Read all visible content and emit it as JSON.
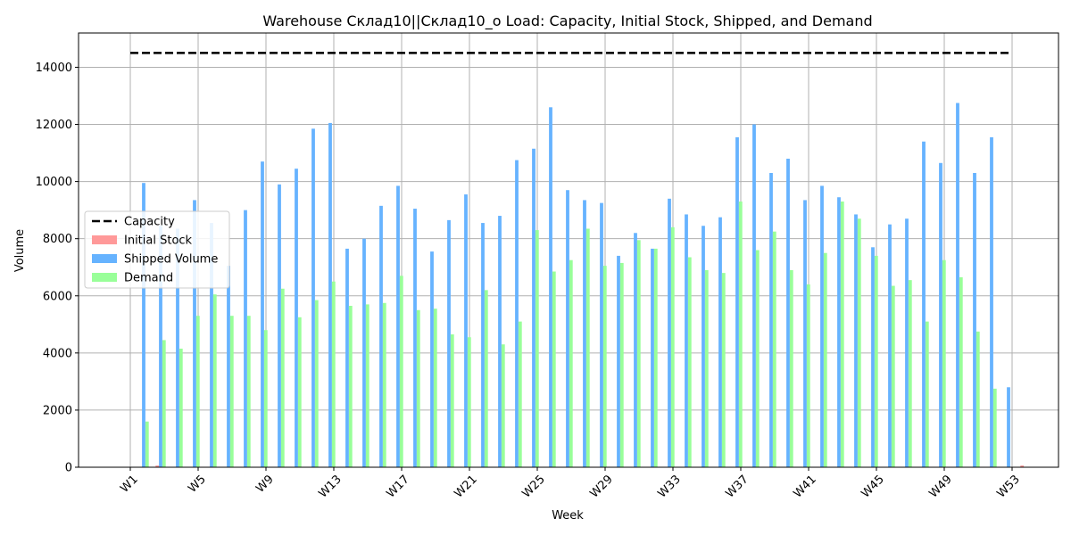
{
  "chart_data": {
    "type": "bar",
    "title": "Warehouse Склад10||Склад10_о Load: Capacity, Initial Stock, Shipped, and Demand",
    "xlabel": "Week",
    "ylabel": "Volume",
    "ylim": [
      0,
      15200
    ],
    "yticks": [
      0,
      2000,
      4000,
      6000,
      8000,
      10000,
      12000,
      14000
    ],
    "ytick_labels": [
      "0",
      "2000",
      "4000",
      "6000",
      "8000",
      "10000",
      "12000",
      "14000"
    ],
    "grid": true,
    "legend_position": "center-left",
    "categories": [
      "W1",
      "W2",
      "W3",
      "W4",
      "W5",
      "W6",
      "W7",
      "W8",
      "W9",
      "W10",
      "W11",
      "W12",
      "W13",
      "W14",
      "W15",
      "W16",
      "W17",
      "W18",
      "W19",
      "W20",
      "W21",
      "W22",
      "W23",
      "W24",
      "W25",
      "W26",
      "W27",
      "W28",
      "W29",
      "W30",
      "W31",
      "W32",
      "W33",
      "W34",
      "W35",
      "W36",
      "W37",
      "W38",
      "W39",
      "W40",
      "W41",
      "W42",
      "W43",
      "W44",
      "W45",
      "W46",
      "W47",
      "W48",
      "W49",
      "W50",
      "W51",
      "W52",
      "W53"
    ],
    "xtick_labels": [
      "W1",
      "W5",
      "W9",
      "W13",
      "W17",
      "W21",
      "W25",
      "W29",
      "W33",
      "W37",
      "W41",
      "W45",
      "W49",
      "W53"
    ],
    "capacity": {
      "name": "Capacity",
      "value": 14500,
      "color": "#000000"
    },
    "series": [
      {
        "name": "Initial Stock",
        "color": "#ff9999",
        "values": [
          0,
          60,
          0,
          0,
          0,
          0,
          0,
          0,
          0,
          0,
          0,
          0,
          0,
          0,
          0,
          0,
          0,
          0,
          0,
          0,
          0,
          0,
          0,
          0,
          0,
          0,
          0,
          0,
          0,
          0,
          0,
          0,
          0,
          0,
          0,
          0,
          0,
          0,
          0,
          0,
          0,
          0,
          0,
          0,
          0,
          0,
          0,
          0,
          0,
          0,
          0,
          0,
          60
        ]
      },
      {
        "name": "Shipped Volume",
        "color": "#66b3ff",
        "values": [
          9950,
          8450,
          8350,
          9350,
          8550,
          7050,
          9000,
          10700,
          9900,
          10450,
          11850,
          12050,
          7650,
          8000,
          9150,
          9850,
          9050,
          7550,
          8650,
          9550,
          8550,
          8800,
          10750,
          11150,
          12600,
          9700,
          9350,
          9250,
          7400,
          8200,
          7650,
          9400,
          8850,
          8450,
          8750,
          11550,
          12000,
          10300,
          10800,
          9350,
          9850,
          9450,
          8850,
          7700,
          8500,
          8700,
          11400,
          10650,
          12750,
          10300,
          11550,
          2800,
          0
        ]
      },
      {
        "name": "Demand",
        "color": "#99ff99",
        "values": [
          1600,
          4450,
          4150,
          5300,
          6050,
          5300,
          5300,
          4800,
          6250,
          5250,
          5850,
          6500,
          5650,
          5700,
          5750,
          6700,
          5500,
          5550,
          4650,
          4550,
          6200,
          4300,
          5100,
          8300,
          6850,
          7250,
          8350,
          7050,
          7150,
          7950,
          7650,
          8400,
          7350,
          6900,
          6800,
          9300,
          7600,
          8250,
          6900,
          6400,
          7500,
          9300,
          8700,
          7400,
          6350,
          6550,
          5100,
          7250,
          6650,
          4750,
          2750,
          0,
          0
        ]
      }
    ]
  }
}
